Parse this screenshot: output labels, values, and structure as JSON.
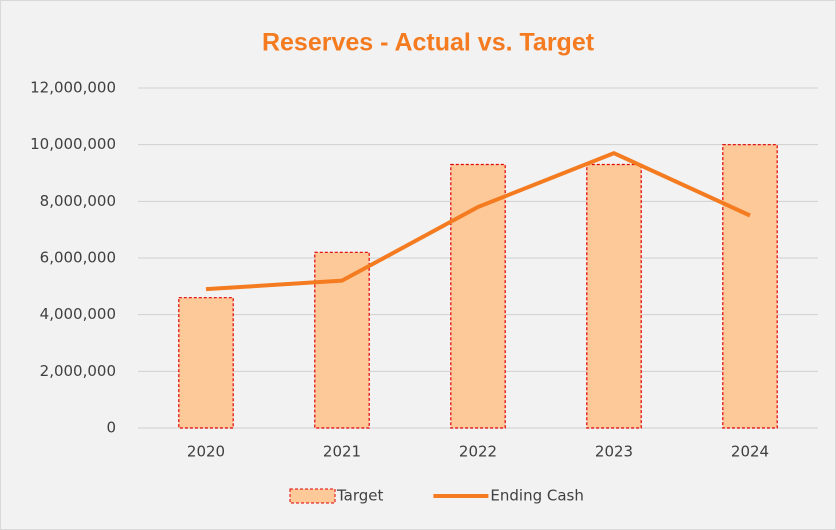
{
  "chart_data": {
    "type": "combo",
    "title": "Reserves - Actual vs. Target",
    "categories": [
      "2020",
      "2021",
      "2022",
      "2023",
      "2024"
    ],
    "series": [
      {
        "name": "Target",
        "type": "bar",
        "color": "#fdc999",
        "edge_color": "#e00000",
        "values": [
          4600000,
          6200000,
          9300000,
          9300000,
          10000000
        ]
      },
      {
        "name": "Ending Cash",
        "type": "line",
        "color": "#f47b20",
        "values": [
          4900000,
          5200000,
          7800000,
          9700000,
          7500000
        ]
      }
    ],
    "ylim": [
      0,
      12000000
    ],
    "yticks": [
      0,
      {
        "value": 2000000,
        "label": "2,000,000"
      },
      {
        "value": 4000000,
        "label": "4,000,000"
      },
      {
        "value": 6000000,
        "label": "6,000,000"
      },
      {
        "value": 8000000,
        "label": "8,000,000"
      },
      {
        "value": 10000000,
        "label": "10,000,000"
      },
      {
        "value": 12000000,
        "label": "12,000,000"
      }
    ],
    "grid": true,
    "legend": "bottom"
  }
}
